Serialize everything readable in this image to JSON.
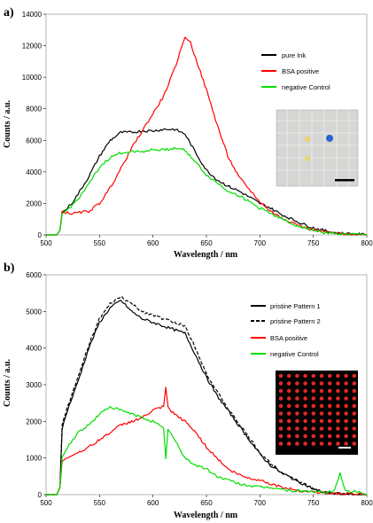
{
  "chart_data": [
    {
      "panel_label": "a)",
      "type": "line",
      "xlabel": "Wavelength / nm",
      "ylabel": "Counts / a.u.",
      "xlim": [
        500,
        800
      ],
      "ylim": [
        0,
        14000
      ],
      "xticks": [
        "500",
        "550",
        "600",
        "650",
        "700",
        "750",
        "800"
      ],
      "yticks": [
        "0",
        "2000",
        "4000",
        "6000",
        "8000",
        "10000",
        "12000",
        "14000"
      ],
      "legend_position": "top-right",
      "inset": "photo of spots on grid paper with scale bar",
      "series": [
        {
          "name": "pure Ink",
          "color": "#000000",
          "dash": "solid",
          "x": [
            500,
            505,
            510,
            513,
            515,
            520,
            525,
            530,
            540,
            550,
            560,
            570,
            580,
            590,
            600,
            610,
            620,
            630,
            640,
            650,
            660,
            670,
            680,
            690,
            700,
            710,
            720,
            730,
            740,
            750,
            760,
            770,
            780,
            790,
            800
          ],
          "y": [
            0,
            0,
            0,
            300,
            1400,
            1700,
            2100,
            2600,
            3700,
            5000,
            6000,
            6500,
            6500,
            6600,
            6600,
            6700,
            6700,
            6400,
            5200,
            4100,
            3500,
            3100,
            2800,
            2400,
            2000,
            1700,
            1300,
            1000,
            700,
            450,
            280,
            150,
            80,
            50,
            0
          ]
        },
        {
          "name": "BSA positive",
          "color": "#ff0000",
          "dash": "solid",
          "x": [
            500,
            505,
            510,
            513,
            515,
            520,
            525,
            530,
            540,
            550,
            560,
            570,
            580,
            590,
            600,
            610,
            620,
            625,
            630,
            635,
            640,
            650,
            660,
            670,
            680,
            690,
            700,
            710,
            720,
            730,
            740,
            750,
            760,
            770,
            780,
            790,
            800
          ],
          "y": [
            0,
            0,
            0,
            300,
            1500,
            1400,
            1350,
            1400,
            1500,
            2000,
            3000,
            4200,
            5500,
            6600,
            7700,
            8800,
            10500,
            11500,
            12600,
            12200,
            11200,
            9200,
            7000,
            5000,
            3700,
            2900,
            2100,
            1500,
            1100,
            800,
            500,
            330,
            200,
            100,
            50,
            30,
            0
          ]
        },
        {
          "name": "negative Control",
          "color": "#00dd00",
          "dash": "solid",
          "x": [
            500,
            505,
            510,
            513,
            515,
            520,
            525,
            530,
            540,
            550,
            560,
            570,
            580,
            590,
            600,
            610,
            620,
            630,
            640,
            650,
            660,
            670,
            680,
            690,
            700,
            710,
            720,
            730,
            740,
            750,
            760,
            770,
            780,
            790,
            800
          ],
          "y": [
            0,
            0,
            0,
            300,
            1300,
            1600,
            1900,
            2300,
            3200,
            4300,
            4900,
            5200,
            5300,
            5300,
            5400,
            5400,
            5500,
            5400,
            4600,
            3800,
            3300,
            2800,
            2500,
            2100,
            1700,
            1400,
            1000,
            700,
            500,
            300,
            150,
            80,
            40,
            20,
            0
          ]
        }
      ]
    },
    {
      "panel_label": "b)",
      "type": "line",
      "xlabel": "Wavelength / nm",
      "ylabel": "Counts / a.u.",
      "xlim": [
        500,
        800
      ],
      "ylim": [
        0,
        6000
      ],
      "xticks": [
        "500",
        "550",
        "600",
        "650",
        "700",
        "750",
        "800"
      ],
      "yticks": [
        "0",
        "1000",
        "2000",
        "3000",
        "4000",
        "5000",
        "6000"
      ],
      "legend_position": "top-right",
      "inset": "fluorescence image of red dot array with scale bar",
      "series": [
        {
          "name": "pristine Pattern 1",
          "color": "#000000",
          "dash": "solid",
          "x": [
            500,
            505,
            510,
            513,
            515,
            520,
            525,
            530,
            540,
            550,
            560,
            570,
            580,
            590,
            600,
            610,
            620,
            630,
            640,
            650,
            660,
            670,
            680,
            690,
            700,
            710,
            720,
            730,
            740,
            750,
            760,
            770,
            780,
            790,
            800
          ],
          "y": [
            0,
            0,
            0,
            200,
            1800,
            2300,
            2700,
            3100,
            4000,
            4700,
            5100,
            5300,
            5000,
            4800,
            4700,
            4600,
            4500,
            4400,
            3800,
            3200,
            2700,
            2300,
            1900,
            1500,
            1100,
            800,
            600,
            450,
            300,
            150,
            60,
            30,
            10,
            0,
            0
          ]
        },
        {
          "name": "pristine Pattern 2",
          "color": "#000000",
          "dash": "dashed",
          "x": [
            500,
            505,
            510,
            513,
            515,
            520,
            525,
            530,
            540,
            550,
            560,
            570,
            580,
            590,
            600,
            610,
            620,
            630,
            640,
            650,
            660,
            670,
            680,
            690,
            700,
            710,
            720,
            730,
            740,
            750,
            760,
            770,
            780,
            790,
            800
          ],
          "y": [
            0,
            0,
            0,
            200,
            1900,
            2400,
            2800,
            3200,
            4100,
            4800,
            5200,
            5400,
            5200,
            5000,
            4900,
            4800,
            4700,
            4600,
            4000,
            3300,
            2800,
            2350,
            1950,
            1550,
            1150,
            850,
            620,
            460,
            310,
            160,
            70,
            30,
            10,
            0,
            0
          ]
        },
        {
          "name": "BSA positive",
          "color": "#ff0000",
          "dash": "solid",
          "x": [
            500,
            505,
            510,
            513,
            515,
            520,
            525,
            530,
            540,
            550,
            560,
            570,
            580,
            590,
            600,
            610,
            612,
            614,
            616,
            620,
            630,
            640,
            650,
            660,
            670,
            680,
            690,
            700,
            710,
            720,
            730,
            740,
            750,
            760,
            770,
            780,
            790,
            800
          ],
          "y": [
            0,
            0,
            0,
            200,
            900,
            1000,
            1100,
            1150,
            1300,
            1500,
            1700,
            1900,
            2000,
            2100,
            2300,
            2400,
            2900,
            2400,
            2300,
            2200,
            2000,
            1700,
            1300,
            1000,
            700,
            550,
            450,
            400,
            300,
            200,
            150,
            100,
            80,
            50,
            30,
            20,
            10,
            0
          ]
        },
        {
          "name": "negative Control",
          "color": "#00dd00",
          "dash": "solid",
          "x": [
            500,
            505,
            510,
            513,
            515,
            520,
            525,
            530,
            540,
            550,
            560,
            570,
            580,
            590,
            600,
            610,
            612,
            614,
            616,
            620,
            630,
            640,
            650,
            660,
            670,
            680,
            690,
            700,
            710,
            720,
            730,
            740,
            750,
            760,
            770,
            775,
            780,
            790,
            800
          ],
          "y": [
            0,
            0,
            0,
            200,
            1000,
            1300,
            1500,
            1700,
            1900,
            2200,
            2400,
            2300,
            2200,
            2100,
            2000,
            1800,
            1000,
            1800,
            1700,
            1500,
            1000,
            800,
            700,
            500,
            400,
            300,
            250,
            200,
            200,
            150,
            100,
            100,
            80,
            50,
            100,
            600,
            100,
            80,
            0
          ]
        }
      ]
    }
  ]
}
